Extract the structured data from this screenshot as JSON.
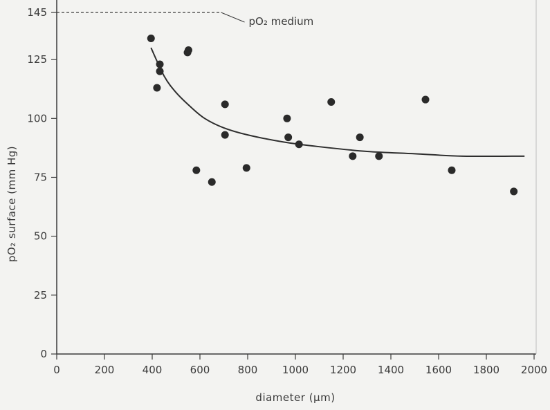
{
  "chart_data": {
    "type": "scatter",
    "xlabel": "diameter (μm)",
    "ylabel": "pO₂ surface (mm Hg)",
    "xlim": [
      0,
      2000
    ],
    "ylim": [
      0,
      145
    ],
    "x_ticks": [
      0,
      200,
      400,
      600,
      800,
      1000,
      1200,
      1400,
      1600,
      1800,
      2000
    ],
    "y_ticks": [
      0,
      25,
      50,
      75,
      100,
      125,
      145
    ],
    "grid": false,
    "points": [
      {
        "x": 395,
        "y": 134
      },
      {
        "x": 420,
        "y": 113
      },
      {
        "x": 432,
        "y": 123
      },
      {
        "x": 432,
        "y": 120
      },
      {
        "x": 548,
        "y": 128
      },
      {
        "x": 552,
        "y": 129
      },
      {
        "x": 585,
        "y": 78
      },
      {
        "x": 650,
        "y": 73
      },
      {
        "x": 705,
        "y": 106
      },
      {
        "x": 705,
        "y": 93
      },
      {
        "x": 795,
        "y": 79
      },
      {
        "x": 965,
        "y": 100
      },
      {
        "x": 970,
        "y": 92
      },
      {
        "x": 1015,
        "y": 89
      },
      {
        "x": 1150,
        "y": 107
      },
      {
        "x": 1240,
        "y": 84
      },
      {
        "x": 1270,
        "y": 92
      },
      {
        "x": 1350,
        "y": 84
      },
      {
        "x": 1545,
        "y": 108
      },
      {
        "x": 1655,
        "y": 78
      },
      {
        "x": 1915,
        "y": 69
      }
    ],
    "fit_curve": [
      {
        "x": 395,
        "y": 130
      },
      {
        "x": 450,
        "y": 118
      },
      {
        "x": 500,
        "y": 111
      },
      {
        "x": 560,
        "y": 105
      },
      {
        "x": 620,
        "y": 100
      },
      {
        "x": 700,
        "y": 96
      },
      {
        "x": 800,
        "y": 93
      },
      {
        "x": 950,
        "y": 90
      },
      {
        "x": 1100,
        "y": 88
      },
      {
        "x": 1300,
        "y": 86
      },
      {
        "x": 1500,
        "y": 85
      },
      {
        "x": 1700,
        "y": 84
      },
      {
        "x": 1960,
        "y": 84
      }
    ],
    "reference_line": {
      "y": 145,
      "x_from": 0,
      "x_to": 700,
      "label": "pO₂ medium"
    }
  }
}
